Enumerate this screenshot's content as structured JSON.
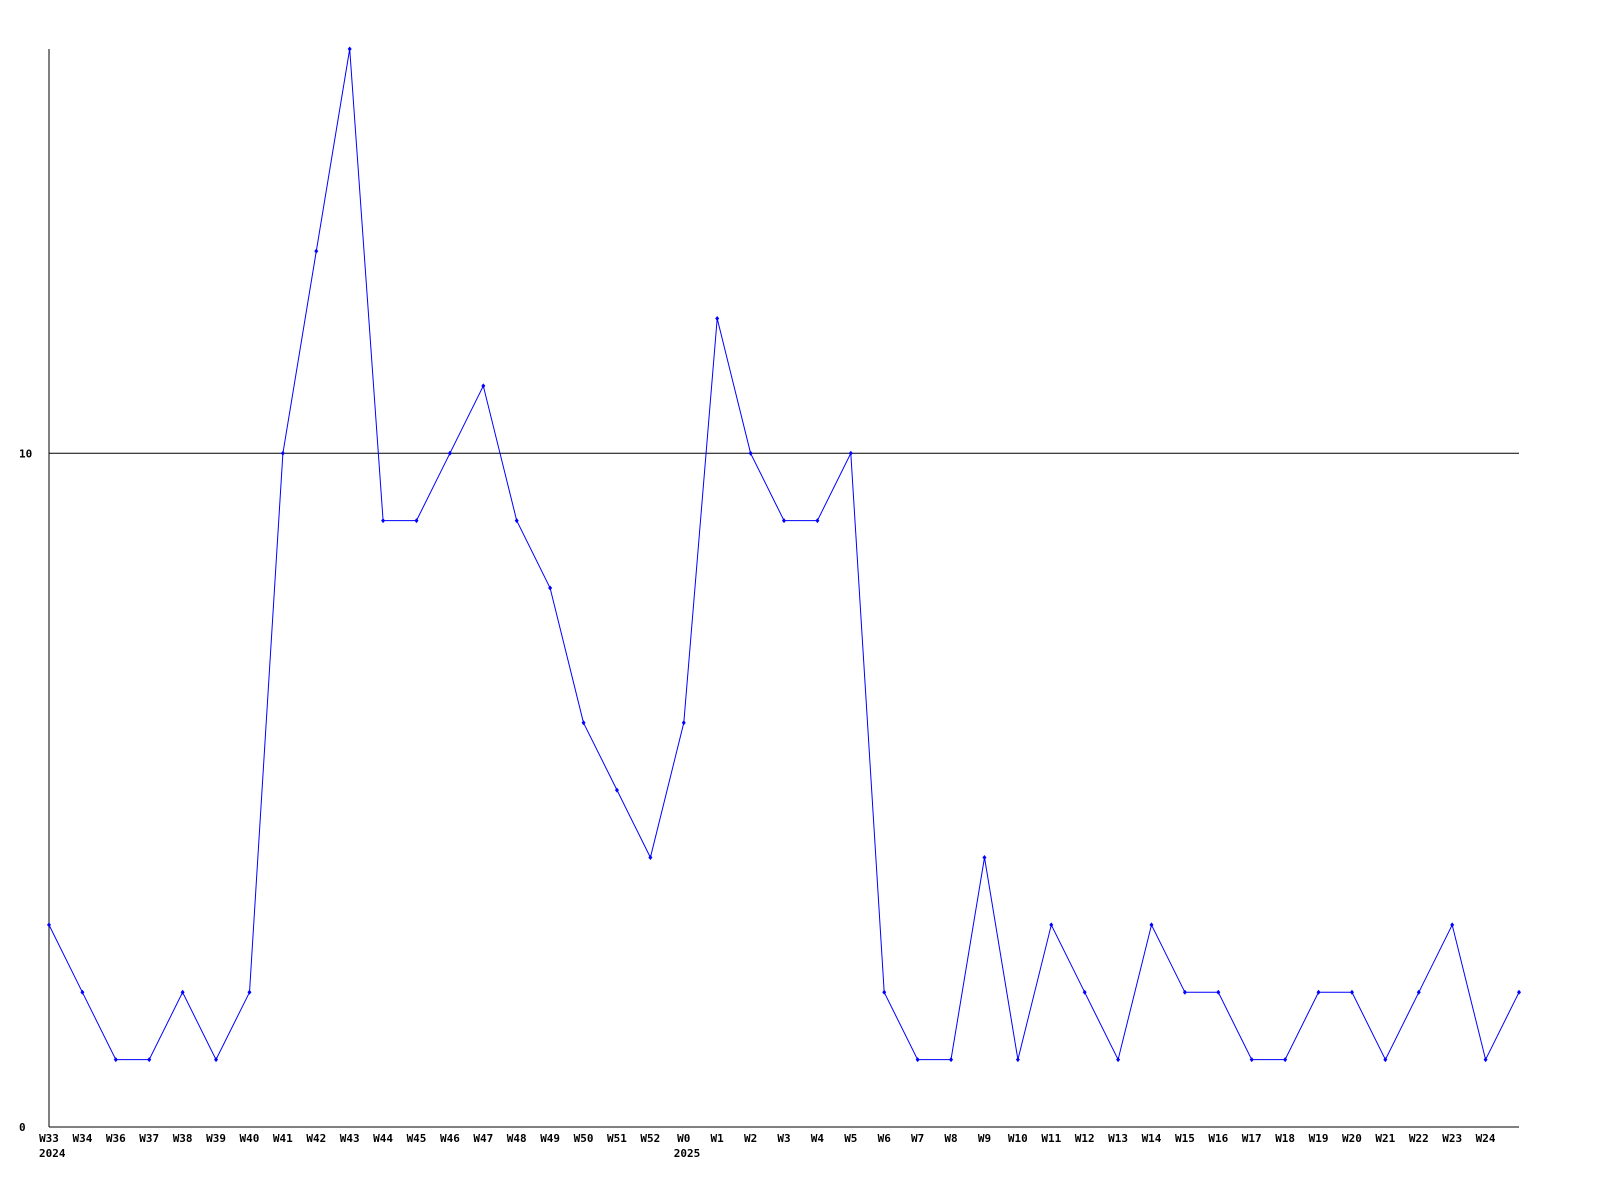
{
  "chart_data": {
    "type": "line",
    "title": "",
    "xlabel": "",
    "ylabel": "",
    "ylim": [
      0,
      16
    ],
    "y_ticks": [
      0,
      10
    ],
    "grid": "horizontal line at 10",
    "line_color": "#0000ff",
    "categories": [
      "W33",
      "W34",
      "W36",
      "W37",
      "W38",
      "W39",
      "W40",
      "W41",
      "W42",
      "W43",
      "W44",
      "W45",
      "W46",
      "W47",
      "W48",
      "W49",
      "W50",
      "W51",
      "W52",
      "W0",
      "W1",
      "W2",
      "W3",
      "W4",
      "W5",
      "W6",
      "W7",
      "W8",
      "W9",
      "W10",
      "W11",
      "W12",
      "W13",
      "W14",
      "W15",
      "W16",
      "W17",
      "W18",
      "W19",
      "W20",
      "W21",
      "W22",
      "W23",
      "W24",
      ""
    ],
    "year_labels": [
      {
        "category": "W33",
        "label": "2024"
      },
      {
        "category": "W0",
        "label": "2025"
      }
    ],
    "values": [
      3,
      2,
      1,
      1,
      2,
      1,
      2,
      10,
      13,
      16,
      9,
      9,
      10,
      11,
      9,
      8,
      6,
      5,
      4,
      6,
      12,
      10,
      9,
      9,
      10,
      2,
      1,
      1,
      4,
      1,
      3,
      2,
      1,
      3,
      2,
      2,
      1,
      1,
      2,
      2,
      1,
      2,
      3,
      1,
      2
    ]
  }
}
